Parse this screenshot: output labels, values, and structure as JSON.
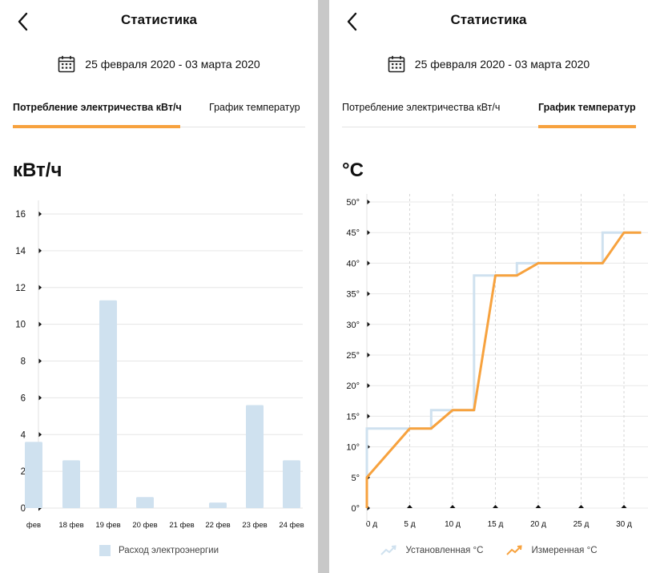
{
  "screens": [
    {
      "title": "Статистика",
      "date_range": "25 февраля 2020 - 03 марта 2020",
      "tabs": [
        {
          "label": "Потребление электричества кВт/ч",
          "active": true
        },
        {
          "label": "График температур",
          "active": false
        }
      ],
      "unit": "кВт/ч"
    },
    {
      "title": "Статистика",
      "date_range": "25 февраля 2020 - 03 марта 2020",
      "tabs": [
        {
          "label": "Потребление электричества кВт/ч",
          "active": false
        },
        {
          "label": "График температур",
          "active": true
        }
      ],
      "unit": "°C"
    }
  ],
  "colors": {
    "accent": "#f7a23e",
    "bar": "#cfe1ef",
    "set_line": "#cfe1ef"
  },
  "chart_data": [
    {
      "type": "bar",
      "categories": [
        "фев",
        "18 фев",
        "19 фев",
        "20 фев",
        "21 фев",
        "22 фев",
        "23 фев",
        "24 фев"
      ],
      "values": [
        3.6,
        2.6,
        11.3,
        0.6,
        0,
        0.3,
        5.6,
        2.6
      ],
      "yticks": [
        0,
        2,
        4,
        6,
        8,
        10,
        12,
        14,
        16
      ],
      "ylim": [
        0,
        16
      ],
      "ylabel": "кВт/ч",
      "legend": [
        "Расход электроэнергии"
      ],
      "grid": true
    },
    {
      "type": "line",
      "xticks": [
        0,
        5,
        10,
        15,
        20,
        25,
        30
      ],
      "xtick_labels": [
        "0 д",
        "5 д",
        "10 д",
        "15 д",
        "20 д",
        "25 д",
        "30 д"
      ],
      "ytick_labels": [
        "0°",
        "5°",
        "10°",
        "15°",
        "20°",
        "25°",
        "30°",
        "35°",
        "40°",
        "45°",
        "50°"
      ],
      "yticks": [
        0,
        5,
        10,
        15,
        20,
        25,
        30,
        35,
        40,
        45,
        50
      ],
      "xlim": [
        0,
        32
      ],
      "ylim": [
        0,
        50
      ],
      "ylabel": "°C",
      "series": [
        {
          "name": "Установленная °C",
          "points": [
            [
              0,
              0
            ],
            [
              0,
              13
            ],
            [
              7.5,
              13
            ],
            [
              7.5,
              16
            ],
            [
              12.5,
              16
            ],
            [
              12.5,
              38
            ],
            [
              17.5,
              38
            ],
            [
              17.5,
              40
            ],
            [
              27.5,
              40
            ],
            [
              27.5,
              45
            ],
            [
              32,
              45
            ]
          ]
        },
        {
          "name": "Измеренная °C",
          "points": [
            [
              0,
              0
            ],
            [
              0,
              5
            ],
            [
              5,
              13
            ],
            [
              7.5,
              13
            ],
            [
              10,
              16
            ],
            [
              12.5,
              16
            ],
            [
              15,
              38
            ],
            [
              17.5,
              38
            ],
            [
              20,
              40
            ],
            [
              27.5,
              40
            ],
            [
              30,
              45
            ],
            [
              32,
              45
            ]
          ]
        }
      ],
      "grid": true
    }
  ]
}
